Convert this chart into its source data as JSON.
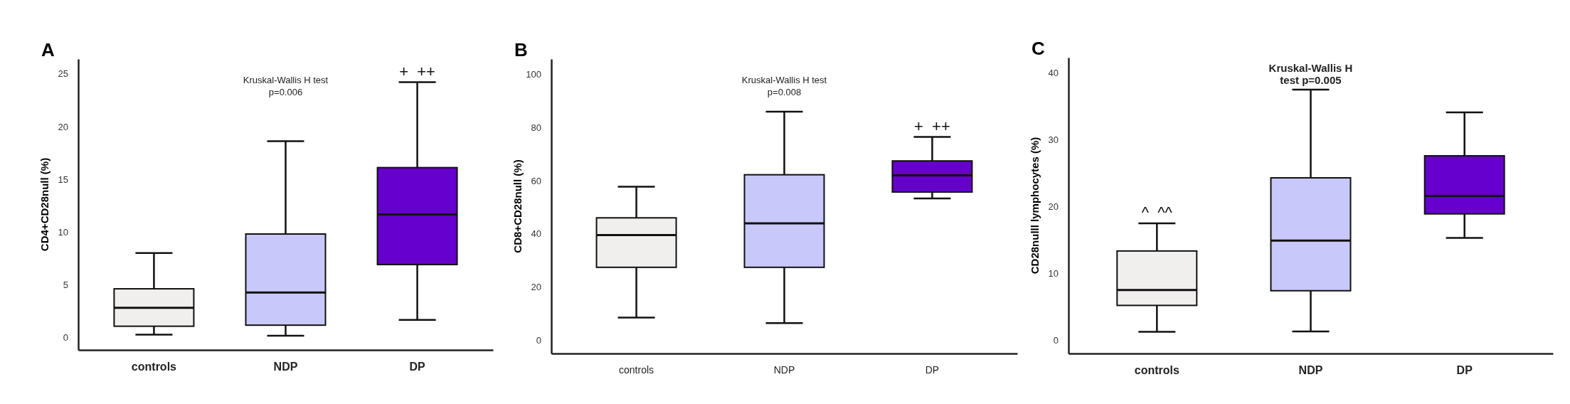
{
  "chart_data": [
    {
      "type": "box",
      "title": "A",
      "ylabel": "CD4+CD28null (%)",
      "categories": [
        "controls",
        "NDP",
        "DP"
      ],
      "colors": [
        "#f1eeee",
        "#c8c8fa",
        "#6600cc"
      ],
      "ylim": [
        -1.2,
        26.4
      ],
      "yticks": [
        0,
        5,
        10,
        15,
        20,
        25
      ],
      "grid": false,
      "boxes": [
        {
          "low": 0.25,
          "q1": 1.05,
          "median": 2.8,
          "q3": 4.6,
          "high": 8.0
        },
        {
          "low": 0.15,
          "q1": 1.15,
          "median": 4.25,
          "q3": 9.8,
          "high": 18.6
        },
        {
          "low": 1.65,
          "q1": 6.9,
          "median": 11.65,
          "q3": 16.1,
          "high": 24.2
        }
      ],
      "annotations": [
        "Kruskal-Wallis H test\np=0.006",
        {
          "text": "+  ++",
          "x": "DP",
          "y": 24.2
        }
      ]
    },
    {
      "type": "box",
      "title": "B",
      "ylabel": "CD8+CD28null (%)",
      "categories": [
        "controls",
        "NDP",
        "DP"
      ],
      "colors": [
        "#f1eeee",
        "#c8c8fa",
        "#6600cc"
      ],
      "ylim": [
        -5,
        105.7
      ],
      "yticks": [
        0,
        20,
        40,
        60,
        80,
        100
      ],
      "grid": false,
      "boxes": [
        {
          "low": 8.5,
          "q1": 27.4,
          "median": 39.5,
          "q3": 46,
          "high": 57.7
        },
        {
          "low": 6.4,
          "q1": 27.4,
          "median": 43.9,
          "q3": 62.2,
          "high": 85.9
        },
        {
          "low": 53.3,
          "q1": 55.7,
          "median": 62,
          "q3": 67.4,
          "high": 76.4
        }
      ],
      "annotations": [
        "Kruskal-Wallis H test\np=0.008",
        {
          "text": "+  ++",
          "x": "DP",
          "y": 76.4
        }
      ]
    },
    {
      "type": "box",
      "title": "C",
      "ylabel": "CD28nulll lymphocytes (%)",
      "categories": [
        "controls",
        "NDP",
        "DP"
      ],
      "colors": [
        "#f1eeee",
        "#c8c8fa",
        "#6600cc"
      ],
      "ylim": [
        -2,
        42.3
      ],
      "yticks": [
        0,
        10,
        20,
        30,
        40
      ],
      "grid": false,
      "boxes": [
        {
          "low": 1.25,
          "q1": 5.2,
          "median": 7.5,
          "q3": 13.35,
          "high": 17.5
        },
        {
          "low": 1.3,
          "q1": 7.4,
          "median": 14.9,
          "q3": 24.3,
          "high": 37.5
        },
        {
          "low": 15.3,
          "q1": 18.9,
          "median": 21.6,
          "q3": 27.6,
          "high": 34.1
        }
      ],
      "annotations": [
        "Kruskal-Wallis H\ntest p=0.005",
        {
          "text": "^  ^^",
          "x": "controls",
          "y": 17.5
        }
      ]
    }
  ]
}
